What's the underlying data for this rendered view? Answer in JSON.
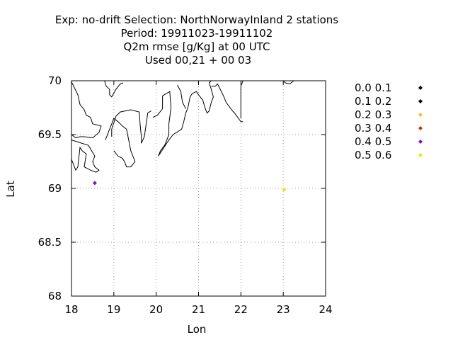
{
  "chart_data": {
    "type": "scatter",
    "title_lines": [
      "Exp: no-drift   Selection: NorthNorwayInland       2 stations",
      "Period: 19911023-19911102",
      "Q2m rmse [g/Kg] at  00 UTC",
      "Used  00,21  + 00 03"
    ],
    "xlabel": "Lon",
    "ylabel": "Lat",
    "xlim": [
      18,
      24
    ],
    "ylim": [
      68,
      70
    ],
    "xticks": [
      18,
      19,
      20,
      21,
      22,
      23,
      24
    ],
    "yticks": [
      68,
      68.5,
      69,
      69.5,
      70
    ],
    "xtick_labels": [
      "18",
      "19",
      "20",
      "21",
      "22",
      "23",
      "24"
    ],
    "ytick_labels": [
      "68",
      "68.5",
      "69",
      "69.5",
      "70"
    ],
    "grid": true,
    "legend_position": "right",
    "legend": [
      {
        "label": "0.0 0.1",
        "color": "#000000"
      },
      {
        "label": "0.1 0.2",
        "color": "#000000"
      },
      {
        "label": "0.2 0.3",
        "color": "#f0c030"
      },
      {
        "label": "0.3 0.4",
        "color": "#d03010"
      },
      {
        "label": "0.4 0.5",
        "color": "#8010d0"
      },
      {
        "label": "0.5 0.6",
        "color": "#f0e020"
      }
    ],
    "points": [
      {
        "lon": 18.55,
        "lat": 69.05,
        "color": "#8010d0"
      },
      {
        "lon": 23.02,
        "lat": 68.99,
        "color": "#f0e020"
      }
    ],
    "coastline": [
      [
        [
          18.0,
          69.27
        ],
        [
          18.1,
          69.17
        ],
        [
          18.15,
          69.2
        ],
        [
          18.2,
          69.38
        ],
        [
          18.25,
          69.35
        ],
        [
          18.35,
          69.32
        ],
        [
          18.3,
          69.2
        ],
        [
          18.45,
          69.17
        ],
        [
          18.58,
          69.15
        ],
        [
          18.65,
          69.17
        ],
        [
          18.55,
          69.2
        ],
        [
          18.5,
          69.25
        ],
        [
          18.55,
          69.3
        ],
        [
          18.4,
          69.4
        ],
        [
          18.0,
          69.45
        ]
      ],
      [
        [
          18.0,
          69.99
        ],
        [
          18.15,
          69.87
        ],
        [
          18.2,
          69.78
        ],
        [
          18.3,
          69.73
        ],
        [
          18.35,
          69.68
        ],
        [
          18.45,
          69.66
        ],
        [
          18.5,
          69.6
        ],
        [
          18.7,
          69.58
        ],
        [
          18.65,
          69.52
        ],
        [
          18.5,
          69.47
        ],
        [
          18.3,
          69.48
        ],
        [
          18.2,
          69.48
        ],
        [
          18.1,
          69.47
        ],
        [
          18.0,
          69.5
        ]
      ],
      [
        [
          18.78,
          70.0
        ],
        [
          18.82,
          69.95
        ],
        [
          18.9,
          69.92
        ],
        [
          18.9,
          69.87
        ],
        [
          18.95,
          69.85
        ],
        [
          19.05,
          69.92
        ],
        [
          19.15,
          69.97
        ],
        [
          19.22,
          69.98
        ]
      ],
      [
        [
          18.95,
          69.48
        ],
        [
          18.95,
          69.55
        ],
        [
          19.05,
          69.67
        ],
        [
          19.15,
          69.71
        ],
        [
          19.4,
          69.73
        ],
        [
          19.6,
          69.71
        ],
        [
          19.62,
          69.6
        ],
        [
          19.65,
          69.48
        ],
        [
          19.65,
          69.42
        ]
      ],
      [
        [
          19.65,
          69.42
        ],
        [
          19.72,
          69.48
        ],
        [
          19.75,
          69.56
        ],
        [
          19.8,
          69.7
        ],
        [
          19.88,
          69.72
        ]
      ],
      [
        [
          19.92,
          69.66
        ],
        [
          20.03,
          69.68
        ],
        [
          20.15,
          69.74
        ],
        [
          20.15,
          69.86
        ],
        [
          20.32,
          69.9
        ],
        [
          20.35,
          69.75
        ],
        [
          20.3,
          69.6
        ],
        [
          20.3,
          69.5
        ],
        [
          20.2,
          69.4
        ],
        [
          20.1,
          69.35
        ],
        [
          20.05,
          69.3
        ]
      ],
      [
        [
          20.05,
          69.3
        ],
        [
          20.3,
          69.45
        ],
        [
          20.4,
          69.5
        ],
        [
          20.6,
          69.55
        ],
        [
          20.65,
          69.62
        ],
        [
          20.7,
          69.7
        ],
        [
          20.75,
          69.75
        ],
        [
          20.8,
          69.85
        ],
        [
          20.85,
          69.88
        ],
        [
          20.95,
          69.9
        ],
        [
          21.0,
          69.87
        ],
        [
          21.1,
          69.82
        ],
        [
          21.15,
          69.75
        ],
        [
          21.2,
          69.7
        ],
        [
          21.25,
          69.72
        ],
        [
          21.3,
          69.8
        ],
        [
          21.35,
          69.85
        ],
        [
          21.3,
          69.92
        ],
        [
          21.25,
          69.98
        ],
        [
          21.3,
          70.0
        ]
      ],
      [
        [
          21.3,
          69.95
        ],
        [
          21.35,
          69.95
        ],
        [
          21.4,
          69.95
        ],
        [
          21.45,
          69.97
        ],
        [
          21.5,
          69.93
        ],
        [
          21.6,
          69.85
        ],
        [
          21.65,
          69.8
        ],
        [
          21.8,
          69.72
        ],
        [
          21.85,
          69.7
        ],
        [
          22.0,
          69.62
        ],
        [
          22.05,
          69.62
        ]
      ],
      [
        [
          22.0,
          69.65
        ],
        [
          22.0,
          69.95
        ],
        [
          22.05,
          70.0
        ]
      ],
      [
        [
          23.0,
          70.0
        ],
        [
          23.05,
          69.98
        ],
        [
          23.15,
          69.97
        ],
        [
          23.25,
          70.0
        ]
      ],
      [
        [
          18.8,
          69.45
        ],
        [
          18.95,
          69.6
        ],
        [
          19.0,
          69.65
        ],
        [
          19.1,
          69.62
        ],
        [
          19.2,
          69.58
        ],
        [
          19.3,
          69.55
        ],
        [
          19.35,
          69.45
        ],
        [
          19.4,
          69.35
        ],
        [
          19.5,
          69.25
        ],
        [
          19.4,
          69.2
        ],
        [
          19.3,
          69.2
        ],
        [
          19.25,
          69.25
        ],
        [
          19.2,
          69.28
        ],
        [
          19.1,
          69.3
        ],
        [
          19.0,
          69.35
        ]
      ],
      [
        [
          20.5,
          69.96
        ],
        [
          20.58,
          69.9
        ],
        [
          20.62,
          69.8
        ],
        [
          20.7,
          69.74
        ]
      ]
    ]
  }
}
